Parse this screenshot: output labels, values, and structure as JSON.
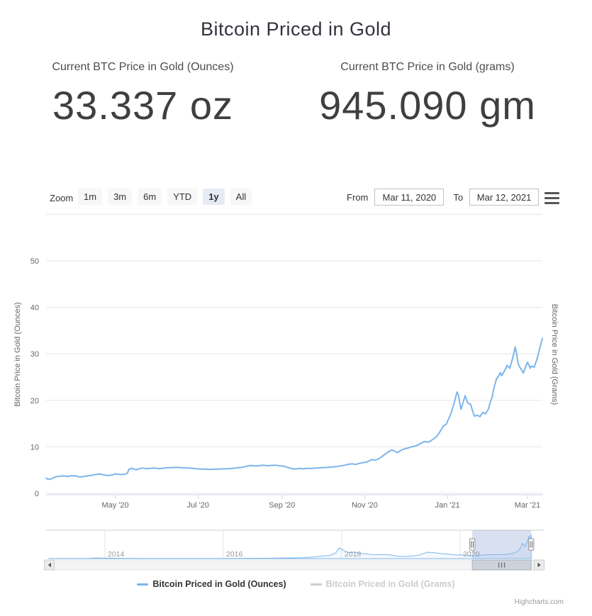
{
  "title": "Bitcoin Priced in Gold",
  "prices": {
    "ounces": {
      "label": "Current BTC Price in Gold (Ounces)",
      "value": "33.337 oz"
    },
    "grams": {
      "label": "Current BTC Price in Gold (grams)",
      "value": "945.090 gm"
    }
  },
  "toolbar": {
    "zoom_label": "Zoom",
    "buttons": [
      "1m",
      "3m",
      "6m",
      "YTD",
      "1y",
      "All"
    ],
    "selected": "1y",
    "from_label": "From",
    "from_value": "Mar 11, 2020",
    "to_label": "To",
    "to_value": "Mar 12, 2021"
  },
  "legend": [
    {
      "label": "Bitcoin Priced in Gold (Ounces)",
      "color": "#7cb5ec",
      "enabled": true
    },
    {
      "label": "Bitcoin Priced in Gold (Grams)",
      "color": "#cccccc",
      "enabled": false
    }
  ],
  "icons": {
    "menu": "hamburger-menu",
    "scroll_left": "left-arrow",
    "scroll_right": "right-arrow",
    "navigator_handles": "drag-handle"
  },
  "colors": {
    "series_line": "#7cb5ec",
    "disabled_series": "#cccccc",
    "selected_button_bg": "#e6ebf5",
    "button_bg": "#f7f7f7",
    "gridline": "#e6e6e6",
    "axis_line": "#ccd6eb",
    "navigator_mask": "rgba(102,133,194,0.25)",
    "axis_text": "#666666"
  },
  "credits": "Highcharts.com",
  "chart_data": {
    "type": "line",
    "title": "Bitcoin Priced in Gold",
    "legend_position": "bottom",
    "grid": "horizontal",
    "x_axis": {
      "range_dates": [
        "Mar 11, 2020",
        "Mar 12, 2021"
      ],
      "range_days": [
        0,
        366
      ],
      "tick_labels": [
        "May '20",
        "Jul '20",
        "Sep '20",
        "Nov '20",
        "Jan '21",
        "Mar '21"
      ],
      "tick_days": [
        51,
        112,
        174,
        235,
        296,
        355
      ]
    },
    "y_axis": {
      "title": "Bitcoin Price in Gold (Ounces)",
      "ticks": [
        0,
        10,
        20,
        30,
        40,
        50
      ],
      "max_grid": 60,
      "ylim": [
        0,
        60
      ]
    },
    "y_axis_right": {
      "title": "Bitcoin Price in Gold (Grams)"
    },
    "series": [
      {
        "name": "Bitcoin Priced in Gold (Ounces)",
        "color": "#7cb5ec",
        "unit": "oz",
        "points_day_value": [
          [
            0,
            3.25
          ],
          [
            2,
            3.0
          ],
          [
            4,
            3.15
          ],
          [
            7,
            3.55
          ],
          [
            10,
            3.7
          ],
          [
            13,
            3.75
          ],
          [
            16,
            3.65
          ],
          [
            19,
            3.8
          ],
          [
            22,
            3.75
          ],
          [
            25,
            3.5
          ],
          [
            28,
            3.65
          ],
          [
            31,
            3.8
          ],
          [
            34,
            3.9
          ],
          [
            37,
            4.1
          ],
          [
            40,
            4.15
          ],
          [
            43,
            3.95
          ],
          [
            46,
            3.85
          ],
          [
            49,
            3.95
          ],
          [
            51,
            4.2
          ],
          [
            53,
            4.1
          ],
          [
            55,
            4.05
          ],
          [
            58,
            4.1
          ],
          [
            60,
            4.35
          ],
          [
            61,
            5.15
          ],
          [
            63,
            5.4
          ],
          [
            65,
            5.2
          ],
          [
            67,
            5.1
          ],
          [
            69,
            5.3
          ],
          [
            71,
            5.45
          ],
          [
            74,
            5.3
          ],
          [
            77,
            5.4
          ],
          [
            80,
            5.45
          ],
          [
            83,
            5.3
          ],
          [
            86,
            5.4
          ],
          [
            89,
            5.5
          ],
          [
            93,
            5.55
          ],
          [
            97,
            5.6
          ],
          [
            101,
            5.5
          ],
          [
            105,
            5.45
          ],
          [
            109,
            5.35
          ],
          [
            113,
            5.25
          ],
          [
            117,
            5.2
          ],
          [
            121,
            5.15
          ],
          [
            125,
            5.2
          ],
          [
            129,
            5.25
          ],
          [
            133,
            5.3
          ],
          [
            137,
            5.35
          ],
          [
            141,
            5.5
          ],
          [
            145,
            5.6
          ],
          [
            148,
            5.85
          ],
          [
            151,
            6.0
          ],
          [
            154,
            5.9
          ],
          [
            157,
            5.95
          ],
          [
            160,
            6.05
          ],
          [
            163,
            5.95
          ],
          [
            166,
            6.0
          ],
          [
            169,
            6.05
          ],
          [
            172,
            5.95
          ],
          [
            175,
            5.85
          ],
          [
            178,
            5.6
          ],
          [
            181,
            5.35
          ],
          [
            184,
            5.25
          ],
          [
            187,
            5.35
          ],
          [
            190,
            5.3
          ],
          [
            193,
            5.4
          ],
          [
            196,
            5.35
          ],
          [
            199,
            5.45
          ],
          [
            202,
            5.5
          ],
          [
            205,
            5.55
          ],
          [
            208,
            5.6
          ],
          [
            211,
            5.65
          ],
          [
            214,
            5.75
          ],
          [
            217,
            5.9
          ],
          [
            220,
            6.05
          ],
          [
            223,
            6.25
          ],
          [
            226,
            6.35
          ],
          [
            228,
            6.2
          ],
          [
            231,
            6.45
          ],
          [
            234,
            6.6
          ],
          [
            237,
            6.8
          ],
          [
            240,
            7.25
          ],
          [
            243,
            7.15
          ],
          [
            246,
            7.55
          ],
          [
            249,
            8.2
          ],
          [
            252,
            8.85
          ],
          [
            255,
            9.35
          ],
          [
            257,
            9.1
          ],
          [
            259,
            8.75
          ],
          [
            261,
            9.15
          ],
          [
            264,
            9.55
          ],
          [
            267,
            9.75
          ],
          [
            270,
            10.05
          ],
          [
            273,
            10.25
          ],
          [
            276,
            10.7
          ],
          [
            279,
            11.15
          ],
          [
            282,
            11.0
          ],
          [
            285,
            11.55
          ],
          [
            288,
            12.2
          ],
          [
            291,
            13.5
          ],
          [
            293,
            14.5
          ],
          [
            295,
            14.8
          ],
          [
            297,
            16.1
          ],
          [
            299,
            17.5
          ],
          [
            301,
            19.5
          ],
          [
            302,
            20.6
          ],
          [
            303,
            21.8
          ],
          [
            304,
            21.2
          ],
          [
            305,
            19.6
          ],
          [
            306,
            18.1
          ],
          [
            307,
            19.0
          ],
          [
            309,
            21.0
          ],
          [
            311,
            19.4
          ],
          [
            313,
            19.2
          ],
          [
            315,
            17.3
          ],
          [
            316,
            16.6
          ],
          [
            318,
            16.8
          ],
          [
            320,
            16.5
          ],
          [
            322,
            17.4
          ],
          [
            324,
            17.1
          ],
          [
            326,
            18.0
          ],
          [
            328,
            20.0
          ],
          [
            329,
            20.7
          ],
          [
            330,
            22.3
          ],
          [
            332,
            24.5
          ],
          [
            334,
            25.4
          ],
          [
            335,
            26.0
          ],
          [
            336,
            25.3
          ],
          [
            338,
            26.3
          ],
          [
            340,
            27.5
          ],
          [
            342,
            26.9
          ],
          [
            344,
            29.0
          ],
          [
            345,
            30.2
          ],
          [
            346,
            31.5
          ],
          [
            347,
            30.0
          ],
          [
            348,
            28.0
          ],
          [
            349,
            27.3
          ],
          [
            351,
            26.4
          ],
          [
            352,
            25.9
          ],
          [
            354,
            27.5
          ],
          [
            355,
            28.2
          ],
          [
            356,
            27.6
          ],
          [
            357,
            26.9
          ],
          [
            358,
            27.4
          ],
          [
            360,
            27.1
          ],
          [
            361,
            28.0
          ],
          [
            362,
            28.8
          ],
          [
            363,
            30.0
          ],
          [
            364,
            31.2
          ],
          [
            365,
            32.2
          ],
          [
            366,
            33.34
          ]
        ]
      },
      {
        "name": "Bitcoin Priced in Gold (Grams)",
        "color": "#cccccc",
        "unit": "gm",
        "visible": false,
        "points_day_value": []
      }
    ],
    "navigator": {
      "year_labels": [
        "2014",
        "2016",
        "2018",
        "2020"
      ],
      "year_values": [
        2014,
        2016,
        2018,
        2020
      ],
      "selected_range_years": [
        2020.205,
        2021.2
      ],
      "points_year_value": [
        [
          2013.05,
          0.05
        ],
        [
          2013.4,
          0.09
        ],
        [
          2013.7,
          0.12
        ],
        [
          2013.85,
          0.85
        ],
        [
          2013.95,
          0.6
        ],
        [
          2014.1,
          0.55
        ],
        [
          2014.3,
          0.4
        ],
        [
          2014.6,
          0.32
        ],
        [
          2014.9,
          0.28
        ],
        [
          2015.1,
          0.2
        ],
        [
          2015.4,
          0.21
        ],
        [
          2015.7,
          0.23
        ],
        [
          2015.95,
          0.32
        ],
        [
          2016.2,
          0.34
        ],
        [
          2016.5,
          0.52
        ],
        [
          2016.75,
          0.48
        ],
        [
          2016.95,
          0.78
        ],
        [
          2017.15,
          0.95
        ],
        [
          2017.35,
          1.4
        ],
        [
          2017.5,
          2.1
        ],
        [
          2017.65,
          3.4
        ],
        [
          2017.8,
          4.3
        ],
        [
          2017.9,
          8.0
        ],
        [
          2017.96,
          14.8
        ],
        [
          2018.05,
          10.5
        ],
        [
          2018.12,
          8.0
        ],
        [
          2018.2,
          8.8
        ],
        [
          2018.35,
          7.0
        ],
        [
          2018.5,
          5.6
        ],
        [
          2018.65,
          5.4
        ],
        [
          2018.8,
          5.3
        ],
        [
          2018.92,
          3.5
        ],
        [
          2019.0,
          3.0
        ],
        [
          2019.15,
          3.2
        ],
        [
          2019.3,
          4.6
        ],
        [
          2019.45,
          8.8
        ],
        [
          2019.55,
          8.2
        ],
        [
          2019.7,
          6.8
        ],
        [
          2019.85,
          5.6
        ],
        [
          2019.95,
          4.9
        ],
        [
          2020.05,
          5.3
        ],
        [
          2020.15,
          4.4
        ],
        [
          2020.2,
          3.1
        ],
        [
          2020.3,
          4.0
        ],
        [
          2020.4,
          5.2
        ],
        [
          2020.55,
          5.4
        ],
        [
          2020.7,
          5.5
        ],
        [
          2020.8,
          5.9
        ],
        [
          2020.9,
          7.5
        ],
        [
          2020.98,
          10.5
        ],
        [
          2021.02,
          14.8
        ],
        [
          2021.05,
          21.0
        ],
        [
          2021.1,
          17.0
        ],
        [
          2021.14,
          25.0
        ],
        [
          2021.16,
          30.5
        ],
        [
          2021.18,
          27.5
        ],
        [
          2021.2,
          33.3
        ]
      ]
    }
  }
}
